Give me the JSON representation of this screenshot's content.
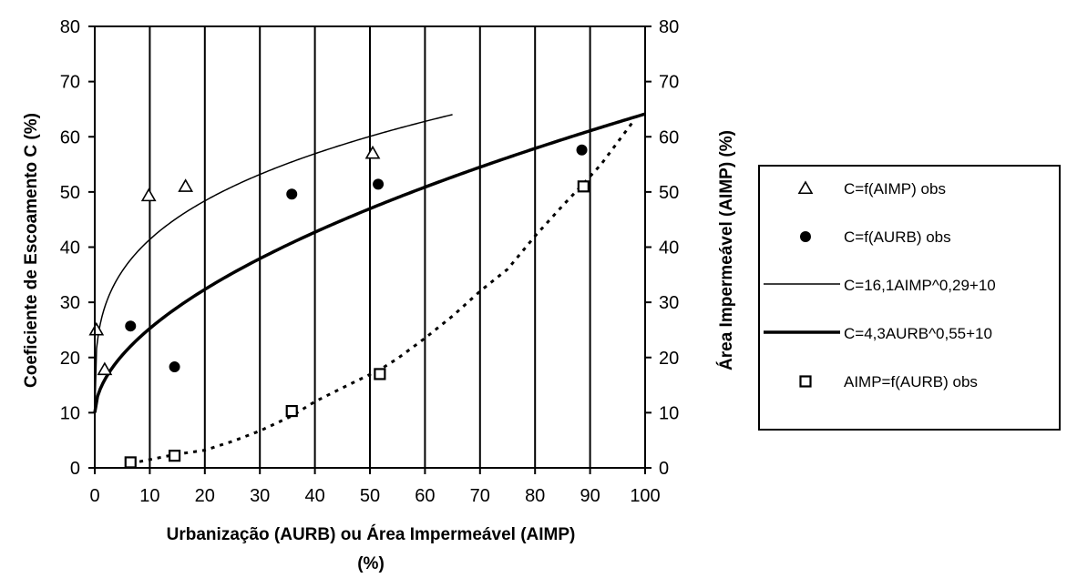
{
  "chart_data": {
    "type": "scatter",
    "title": "",
    "xlabel_line1": "Urbanização (AURB) ou Área Impermeável (AIMP)",
    "xlabel_line2": "(%)",
    "ylabel": "Coeficiente de Escoamento C (%)",
    "y2label": "Área Impermeável (AIMP) (%)",
    "xlim": [
      0,
      100
    ],
    "ylim": [
      0,
      80
    ],
    "y2lim": [
      0,
      80
    ],
    "xticks": [
      "0",
      "10",
      "20",
      "30",
      "40",
      "50",
      "60",
      "70",
      "80",
      "90",
      "100"
    ],
    "yticks": [
      "0",
      "10",
      "20",
      "30",
      "40",
      "50",
      "60",
      "70",
      "80"
    ],
    "grid": "vertical",
    "legend_position": "right",
    "series": [
      {
        "name": "C=f(AIMP) obs",
        "kind": "points",
        "marker": "triangle",
        "x": [
          0.3,
          1.8,
          9.8,
          16.5,
          50.5
        ],
        "y": [
          25,
          17.8,
          49.3,
          51,
          57
        ]
      },
      {
        "name": "C=f(AURB) obs",
        "kind": "points",
        "marker": "circle",
        "x": [
          6.5,
          14.5,
          35.8,
          51.5,
          88.5
        ],
        "y": [
          25.7,
          18.3,
          49.6,
          51.4,
          57.6
        ]
      },
      {
        "name": "C=16,1AIMP^0,29+10",
        "kind": "line",
        "style": "thin",
        "coef": 16.1,
        "exp": 0.29,
        "offset": 10,
        "x_range": [
          0,
          65
        ]
      },
      {
        "name": "C=4,3AURB^0,55+10",
        "kind": "line",
        "style": "thick",
        "coef": 4.3,
        "exp": 0.55,
        "offset": 10,
        "x_range": [
          0,
          100
        ]
      },
      {
        "name": "AIMP=f(AURB) obs",
        "kind": "points",
        "marker": "square",
        "x": [
          6.5,
          14.5,
          35.8,
          51.8,
          88.8
        ],
        "y": [
          1,
          2.2,
          10.3,
          17,
          51
        ]
      },
      {
        "kind": "line",
        "style": "dotted",
        "x": [
          6.5,
          10,
          14.5,
          20,
          25,
          30,
          35.8,
          40,
          45,
          51.8,
          55,
          60,
          65,
          70,
          75,
          80,
          85,
          88.8,
          92,
          95,
          98
        ],
        "y": [
          0.8,
          1.5,
          2.4,
          3.2,
          4.8,
          6.7,
          9.4,
          12,
          14.5,
          17.8,
          19.8,
          23.5,
          27.5,
          32,
          36,
          42,
          47.5,
          51.5,
          55,
          59,
          63
        ]
      }
    ]
  }
}
